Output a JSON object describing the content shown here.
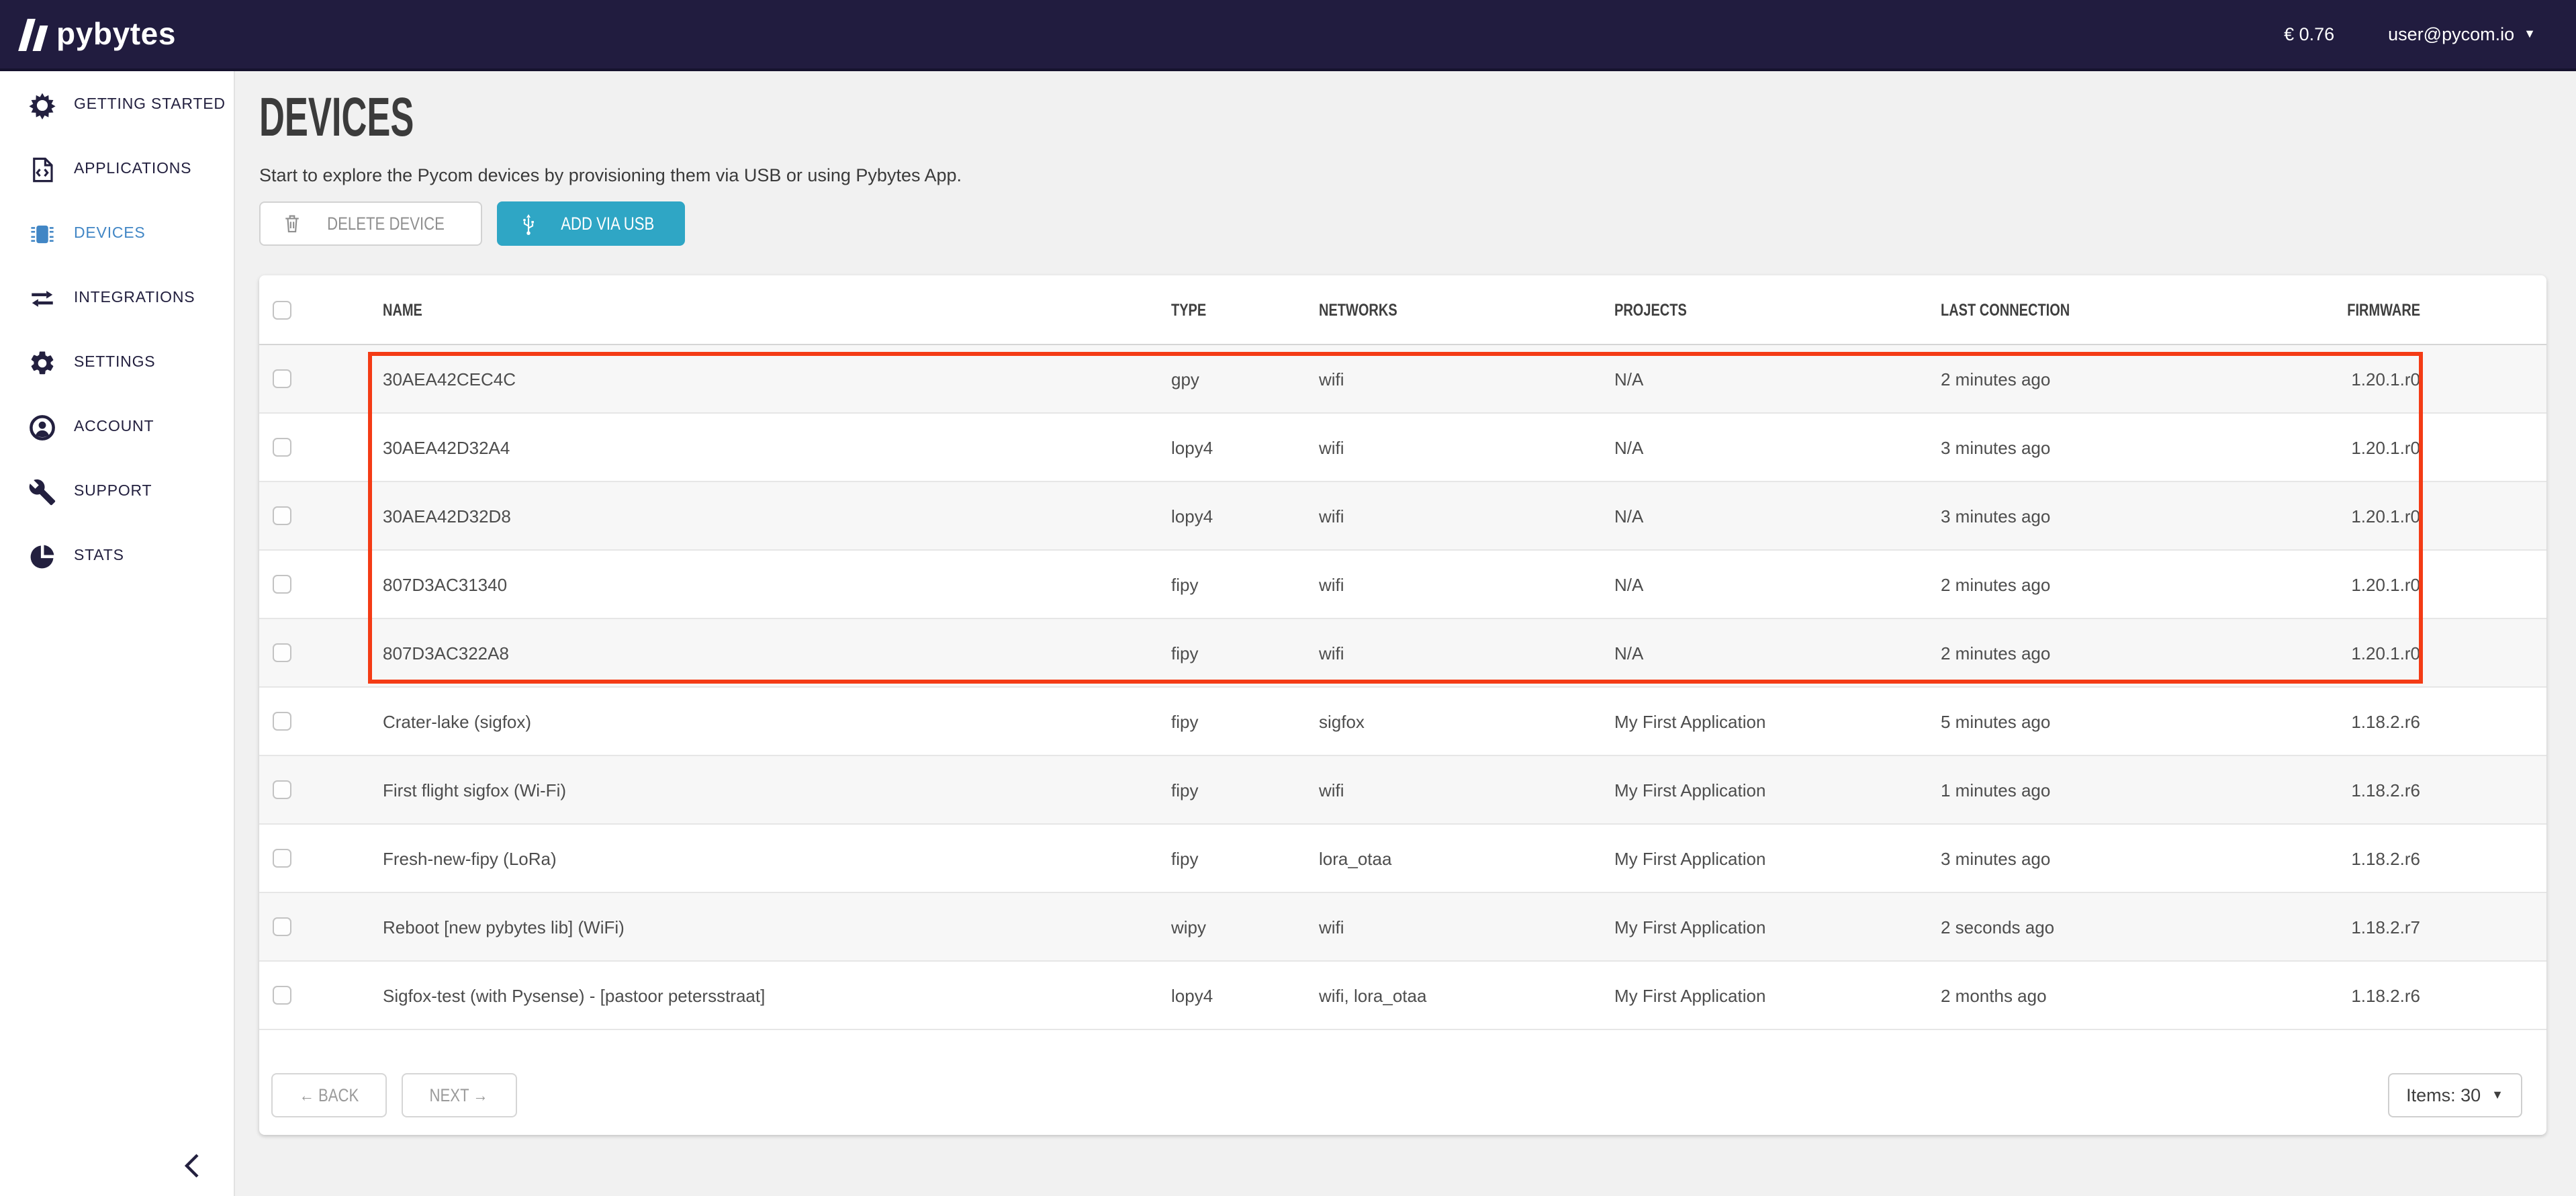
{
  "colors": {
    "brand_navy": "#211c3f",
    "active_blue": "#4186c5",
    "accent_teal": "#2fa6c5",
    "highlight_red": "#f43b15"
  },
  "topbar": {
    "brand": "pybytes",
    "balance": "€ 0.76",
    "user_email": "user@pycom.io"
  },
  "sidebar": {
    "items": [
      {
        "id": "getting-started",
        "label": "GETTING STARTED",
        "active": false
      },
      {
        "id": "applications",
        "label": "APPLICATIONS",
        "active": false
      },
      {
        "id": "devices",
        "label": "DEVICES",
        "active": true
      },
      {
        "id": "integrations",
        "label": "INTEGRATIONS",
        "active": false
      },
      {
        "id": "settings",
        "label": "SETTINGS",
        "active": false
      },
      {
        "id": "account",
        "label": "ACCOUNT",
        "active": false
      },
      {
        "id": "support",
        "label": "SUPPORT",
        "active": false
      },
      {
        "id": "stats",
        "label": "STATS",
        "active": false
      }
    ]
  },
  "page": {
    "title": "DEVICES",
    "subtitle": "Start to explore the Pycom devices by provisioning them via USB or using Pybytes App.",
    "delete_button": "DELETE DEVICE",
    "add_button": "ADD VIA USB"
  },
  "table": {
    "columns": [
      "NAME",
      "TYPE",
      "NETWORKS",
      "PROJECTS",
      "LAST CONNECTION",
      "FIRMWARE"
    ],
    "rows": [
      {
        "name": "30AEA42CEC4C",
        "type": "gpy",
        "networks": "wifi",
        "projects": "N/A",
        "last_connection": "2 minutes ago",
        "firmware": "1.20.1.r0",
        "highlighted": true
      },
      {
        "name": "30AEA42D32A4",
        "type": "lopy4",
        "networks": "wifi",
        "projects": "N/A",
        "last_connection": "3 minutes ago",
        "firmware": "1.20.1.r0",
        "highlighted": true
      },
      {
        "name": "30AEA42D32D8",
        "type": "lopy4",
        "networks": "wifi",
        "projects": "N/A",
        "last_connection": "3 minutes ago",
        "firmware": "1.20.1.r0",
        "highlighted": true
      },
      {
        "name": "807D3AC31340",
        "type": "fipy",
        "networks": "wifi",
        "projects": "N/A",
        "last_connection": "2 minutes ago",
        "firmware": "1.20.1.r0",
        "highlighted": true
      },
      {
        "name": "807D3AC322A8",
        "type": "fipy",
        "networks": "wifi",
        "projects": "N/A",
        "last_connection": "2 minutes ago",
        "firmware": "1.20.1.r0",
        "highlighted": true
      },
      {
        "name": "Crater-lake (sigfox)",
        "type": "fipy",
        "networks": "sigfox",
        "projects": "My First Application",
        "last_connection": "5 minutes ago",
        "firmware": "1.18.2.r6",
        "highlighted": false
      },
      {
        "name": "First flight sigfox (Wi-Fi)",
        "type": "fipy",
        "networks": "wifi",
        "projects": "My First Application",
        "last_connection": "1 minutes ago",
        "firmware": "1.18.2.r6",
        "highlighted": false
      },
      {
        "name": "Fresh-new-fipy (LoRa)",
        "type": "fipy",
        "networks": "lora_otaa",
        "projects": "My First Application",
        "last_connection": "3 minutes ago",
        "firmware": "1.18.2.r6",
        "highlighted": false
      },
      {
        "name": "Reboot [new pybytes lib] (WiFi)",
        "type": "wipy",
        "networks": "wifi",
        "projects": "My First Application",
        "last_connection": "2 seconds ago",
        "firmware": "1.18.2.r7",
        "highlighted": false
      },
      {
        "name": "Sigfox-test (with Pysense) - [pastoor petersstraat]",
        "type": "lopy4",
        "networks": "wifi, lora_otaa",
        "projects": "My First Application",
        "last_connection": "2 months ago",
        "firmware": "1.18.2.r6",
        "highlighted": false
      }
    ]
  },
  "pagination": {
    "back": "← BACK",
    "next": "NEXT →",
    "items_label": "Items: 30"
  }
}
